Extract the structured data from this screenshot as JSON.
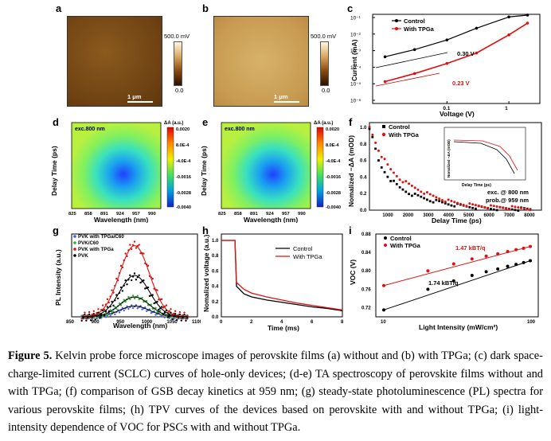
{
  "panels": {
    "a": {
      "label": "a",
      "colorbar_max": "500.0 mV",
      "colorbar_min": "0.0",
      "scalebar": "1 μm"
    },
    "b": {
      "label": "b",
      "colorbar_max": "500.0 mV",
      "colorbar_min": "0.0",
      "scalebar": "1 μm"
    },
    "c": {
      "label": "c",
      "xlabel": "Voltage (V)",
      "ylabel": "Current (mA)",
      "legend": [
        "Control",
        "With TPGa"
      ],
      "annotations": [
        "0.30 V",
        "0.23 V"
      ]
    },
    "d": {
      "label": "d",
      "tag": "exc.800 nm",
      "xlabel": "Wavelength (nm)",
      "ylabel": "Delay Time (ps)",
      "cbar_title": "ΔA (a.u.)",
      "cbar_ticks": [
        "0.0020",
        "8.0E-4",
        "-4.0E-4",
        "-0.0016",
        "-0.0028",
        "-0.0040"
      ],
      "xticks": [
        "825",
        "858",
        "891",
        "924",
        "957",
        "990"
      ]
    },
    "e": {
      "label": "e",
      "tag": "exc.800 nm",
      "xlabel": "Wavelength (nm)",
      "ylabel": "Delay Time (ps)",
      "cbar_title": "ΔA (a.u.)",
      "cbar_ticks": [
        "0.0020",
        "8.0E-4",
        "-4.0E-4",
        "-0.0016",
        "-0.0028",
        "-0.0040"
      ],
      "xticks": [
        "825",
        "858",
        "891",
        "924",
        "957",
        "990"
      ]
    },
    "f": {
      "label": "f",
      "xlabel": "Delay Time (ps)",
      "ylabel": "Nomalized −ΔA (mOD)",
      "legend": [
        "Control",
        "With TPGa"
      ],
      "note1": "exc. @ 800 nm",
      "note2": "prob.@ 959 nm",
      "inset_xlabel": "Delay Time (ps)",
      "inset_ylabel": "Nomalized −ΔA (mOD)"
    },
    "g": {
      "label": "g",
      "xlabel": "Wavelength (nm)",
      "ylabel": "PL Intensity (a.u.)",
      "legend": [
        "PVK with TPGa/C60",
        "PVK/C60",
        "PVK with TPGa",
        "PVK"
      ]
    },
    "h": {
      "label": "h",
      "xlabel": "Time (ms)",
      "ylabel": "Nomalized voltage (a.u.)",
      "legend": [
        "Control",
        "With TPGa"
      ]
    },
    "i": {
      "label": "i",
      "xlabel": "Light Intensity (mW/cm²)",
      "ylabel": "VOC (V)",
      "legend": [
        "Control",
        "With TPGa"
      ],
      "ann_red": "1.47 kBT/q",
      "ann_black": "1.74 kBT/q"
    }
  },
  "chart_data": [
    {
      "type": "line",
      "panel": "c",
      "series": [
        {
          "name": "Control",
          "x": [
            0.01,
            0.03,
            0.1,
            0.3,
            1,
            2
          ],
          "y": [
            0.0003,
            0.0008,
            0.003,
            0.015,
            0.07,
            0.09
          ]
        },
        {
          "name": "With TPGa",
          "x": [
            0.01,
            0.03,
            0.1,
            0.3,
            1,
            2
          ],
          "y": [
            1e-05,
            3e-05,
            0.00012,
            0.0005,
            0.006,
            0.03
          ]
        }
      ],
      "xscale": "log",
      "yscale": "log",
      "xticks": [
        "0.1",
        "1"
      ],
      "yticks": [
        "10⁻⁶",
        "10⁻⁵",
        "10⁻⁴",
        "10⁻³",
        "10⁻²",
        "10⁻¹"
      ]
    },
    {
      "type": "scatter",
      "panel": "f",
      "series": [
        {
          "name": "Control",
          "x": [
            0,
            500,
            1000,
            1500,
            2000,
            3000,
            4000,
            5000,
            6000,
            8000
          ],
          "y": [
            1.0,
            0.55,
            0.38,
            0.27,
            0.2,
            0.12,
            0.07,
            0.04,
            0.02,
            0.01
          ]
        },
        {
          "name": "With TPGa",
          "x": [
            0,
            500,
            1000,
            1500,
            2000,
            3000,
            4000,
            5000,
            6000,
            8000
          ],
          "y": [
            1.0,
            0.7,
            0.5,
            0.38,
            0.3,
            0.18,
            0.1,
            0.06,
            0.04,
            0.02
          ]
        }
      ],
      "xticks": [
        "1000",
        "2000",
        "3000",
        "4000",
        "5000",
        "6000",
        "7000",
        "8000"
      ],
      "yticks": [
        "0.0",
        "0.2",
        "0.4",
        "0.6",
        "0.8",
        "1.0"
      ]
    },
    {
      "type": "scatter",
      "panel": "g",
      "x": [
        900,
        925,
        950,
        975,
        1000,
        1025,
        1050
      ],
      "series": [
        {
          "name": "PVK with TPGa/C60",
          "values": [
            0.02,
            0.05,
            0.1,
            0.13,
            0.1,
            0.05,
            0.02
          ]
        },
        {
          "name": "PVK/C60",
          "values": [
            0.03,
            0.1,
            0.2,
            0.24,
            0.2,
            0.1,
            0.03
          ]
        },
        {
          "name": "PVK with TPGa",
          "values": [
            0.08,
            0.35,
            0.7,
            0.86,
            0.7,
            0.35,
            0.08
          ]
        },
        {
          "name": "PVK",
          "values": [
            0.05,
            0.2,
            0.42,
            0.5,
            0.42,
            0.2,
            0.05
          ]
        }
      ],
      "xticks": [
        "850",
        "900",
        "950",
        "1000",
        "1050",
        "1100"
      ]
    },
    {
      "type": "line",
      "panel": "h",
      "series": [
        {
          "name": "Control",
          "x": [
            0,
            0.9,
            1.0,
            1.5,
            2,
            3,
            4,
            5,
            6,
            7,
            8
          ],
          "y": [
            1.0,
            1.0,
            0.4,
            0.3,
            0.26,
            0.22,
            0.19,
            0.16,
            0.13,
            0.11,
            0.08
          ]
        },
        {
          "name": "With TPGa",
          "x": [
            0,
            0.9,
            1.0,
            1.5,
            2,
            3,
            4,
            5,
            6,
            7,
            8
          ],
          "y": [
            1.0,
            1.0,
            0.45,
            0.36,
            0.31,
            0.26,
            0.22,
            0.18,
            0.15,
            0.12,
            0.09
          ]
        }
      ],
      "xticks": [
        "0",
        "2",
        "4",
        "6",
        "8"
      ],
      "yticks": [
        "0.0",
        "0.2",
        "0.4",
        "0.6",
        "0.8",
        "1.0"
      ]
    },
    {
      "type": "scatter",
      "panel": "i",
      "xscale": "log",
      "series": [
        {
          "name": "Control",
          "x": [
            10,
            20,
            30,
            40,
            50,
            60,
            70,
            80,
            90,
            100
          ],
          "y": [
            0.715,
            0.76,
            0.778,
            0.79,
            0.798,
            0.804,
            0.81,
            0.814,
            0.818,
            0.822
          ]
        },
        {
          "name": "With TPGa",
          "x": [
            10,
            20,
            30,
            40,
            50,
            60,
            70,
            80,
            90,
            100
          ],
          "y": [
            0.768,
            0.8,
            0.815,
            0.826,
            0.832,
            0.837,
            0.842,
            0.846,
            0.849,
            0.853
          ]
        }
      ],
      "xticks": [
        "10",
        "100"
      ],
      "yticks": [
        "0.72",
        "0.76",
        "0.80",
        "0.84",
        "0.88"
      ],
      "ylim": [
        0.72,
        0.88
      ]
    }
  ],
  "caption": {
    "fig": "Figure 5.",
    "text": "Kelvin probe force microscope images of perovskite films (a) without and (b) with TPGa; (c) dark space-charge-limited current (SCLC) curves of hole-only devices; (d-e) TA spectroscopy of perovskite films without and with TPGa; (f) comparison of GSB decay kinetics at 959 nm; (g) steady-state photoluminescence (PL) spectra for various perovskite films; (h) TPV curves of the devices based on perovskite with and without TPGa; (i) light-intensity dependence of VOC for PSCs with and without TPGa."
  }
}
